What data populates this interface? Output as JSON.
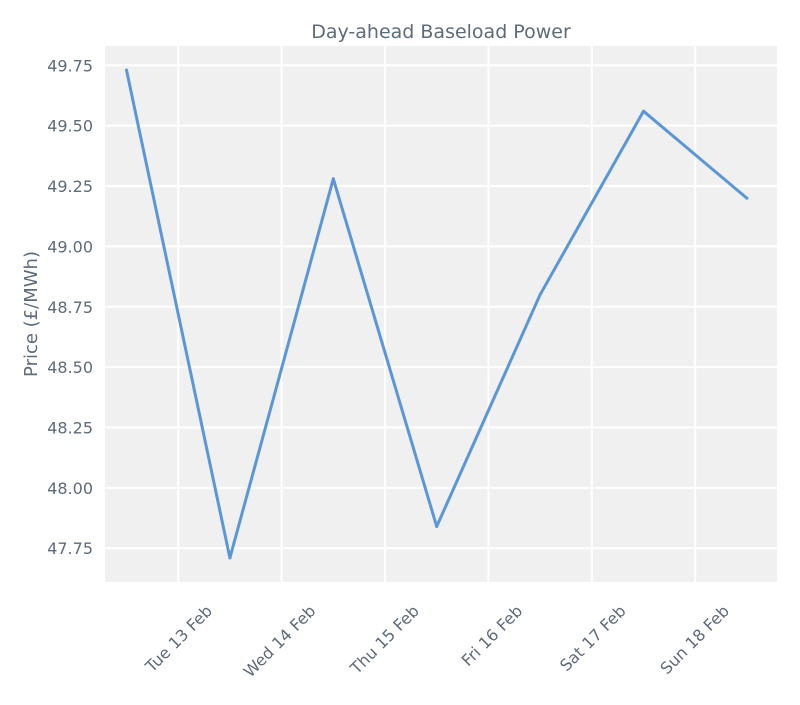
{
  "chart_data": {
    "type": "line",
    "title": "Day-ahead Baseload Power",
    "xlabel": "",
    "ylabel": "Price (£/MWh)",
    "x": [
      "2024-02-12T12:00",
      "2024-02-13T12:00",
      "2024-02-14T12:00",
      "2024-02-15T12:00",
      "2024-02-16T12:00",
      "2024-02-17T12:00",
      "2024-02-18T12:00"
    ],
    "x_tick_dates": [
      "2024-02-13",
      "2024-02-14",
      "2024-02-15",
      "2024-02-16",
      "2024-02-17",
      "2024-02-18"
    ],
    "x_tick_labels": [
      "Tue 13 Feb",
      "Wed 14 Feb",
      "Thu 15 Feb",
      "Fri 16 Feb",
      "Sat 17 Feb",
      "Sun 18 Feb"
    ],
    "xlim": [
      "2024-02-12T07:00",
      "2024-02-18T19:00"
    ],
    "ylim": [
      47.61,
      49.83
    ],
    "y_ticks": [
      47.75,
      48.0,
      48.25,
      48.5,
      48.75,
      49.0,
      49.25,
      49.5,
      49.75
    ],
    "y_tick_labels": [
      "47.75",
      "48.00",
      "48.25",
      "48.50",
      "48.75",
      "49.00",
      "49.25",
      "49.50",
      "49.75"
    ],
    "series": [
      {
        "values": [
          49.73,
          47.71,
          49.28,
          47.84,
          48.8,
          49.56,
          49.2
        ],
        "color": "#5b97d6"
      }
    ],
    "grid": true,
    "colors": {
      "plot_background": "#f0f0f0",
      "grid": "#ffffff",
      "text": "#5e6b78"
    }
  }
}
